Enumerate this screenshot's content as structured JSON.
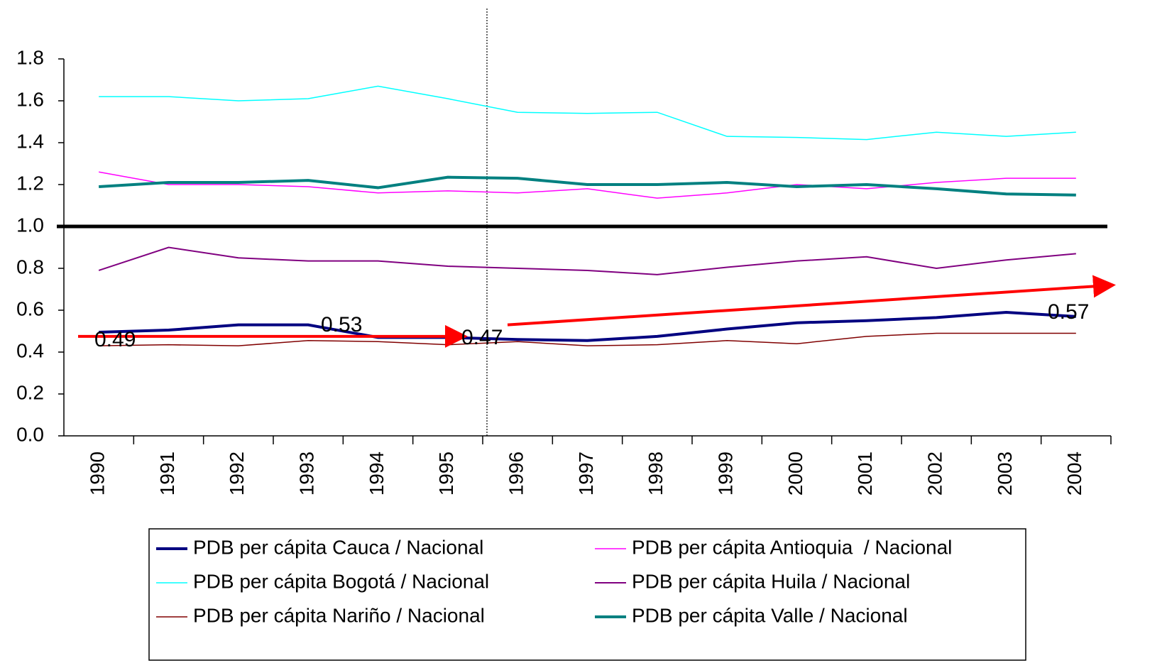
{
  "chart_data": {
    "type": "line",
    "categories": [
      "1990",
      "1991",
      "1992",
      "1993",
      "1994",
      "1995",
      "1996",
      "1997",
      "1998",
      "1999",
      "2000",
      "2001",
      "2002",
      "2003",
      "2004"
    ],
    "series": [
      {
        "name": "PDB per cápita Cauca / Nacional",
        "color": "#000080",
        "width": 4,
        "values": [
          0.495,
          0.505,
          0.53,
          0.53,
          0.47,
          0.47,
          0.46,
          0.455,
          0.475,
          0.51,
          0.54,
          0.55,
          0.565,
          0.59,
          0.57
        ]
      },
      {
        "name": "PDB per cápita Antioquia  / Nacional",
        "color": "#ff00ff",
        "width": 1.5,
        "values": [
          1.26,
          1.2,
          1.2,
          1.19,
          1.16,
          1.17,
          1.16,
          1.18,
          1.135,
          1.16,
          1.2,
          1.18,
          1.21,
          1.23,
          1.23
        ]
      },
      {
        "name": "PDB per cápita Bogotá / Nacional",
        "color": "#00ffff",
        "width": 1.5,
        "values": [
          1.62,
          1.62,
          1.6,
          1.61,
          1.67,
          1.61,
          1.545,
          1.54,
          1.545,
          1.43,
          1.425,
          1.415,
          1.45,
          1.43,
          1.45
        ]
      },
      {
        "name": "PDB per cápita Huila / Nacional",
        "color": "#800080",
        "width": 2,
        "values": [
          0.79,
          0.9,
          0.85,
          0.835,
          0.835,
          0.81,
          0.8,
          0.79,
          0.77,
          0.805,
          0.835,
          0.855,
          0.8,
          0.84,
          0.87
        ]
      },
      {
        "name": "PDB per cápita Nariño / Nacional",
        "color": "#800000",
        "width": 1.5,
        "values": [
          0.43,
          0.435,
          0.43,
          0.455,
          0.45,
          0.435,
          0.45,
          0.43,
          0.435,
          0.455,
          0.44,
          0.475,
          0.49,
          0.49,
          0.49
        ]
      },
      {
        "name": "PDB per cápita Valle / Nacional",
        "color": "#008080",
        "width": 4,
        "values": [
          1.19,
          1.21,
          1.21,
          1.22,
          1.185,
          1.235,
          1.23,
          1.2,
          1.2,
          1.21,
          1.19,
          1.2,
          1.18,
          1.155,
          1.15
        ]
      }
    ],
    "ylim": [
      0,
      1.8
    ],
    "yticks": [
      {
        "value": 0,
        "label": "0.0"
      },
      0.2,
      0.4,
      0.6,
      0.8,
      {
        "value": 1,
        "label": "1.0"
      },
      1.2,
      1.4,
      1.6,
      1.8
    ],
    "reference_line": 1,
    "arrows": [
      {
        "color": "#ff0000",
        "y": [
          0.475,
          0.475
        ]
      },
      {
        "color": "#ff0000",
        "y": [
          0.53,
          0.72
        ]
      }
    ],
    "annotations": [
      "0.49",
      "0.53",
      "0.47",
      "0.57"
    ]
  }
}
